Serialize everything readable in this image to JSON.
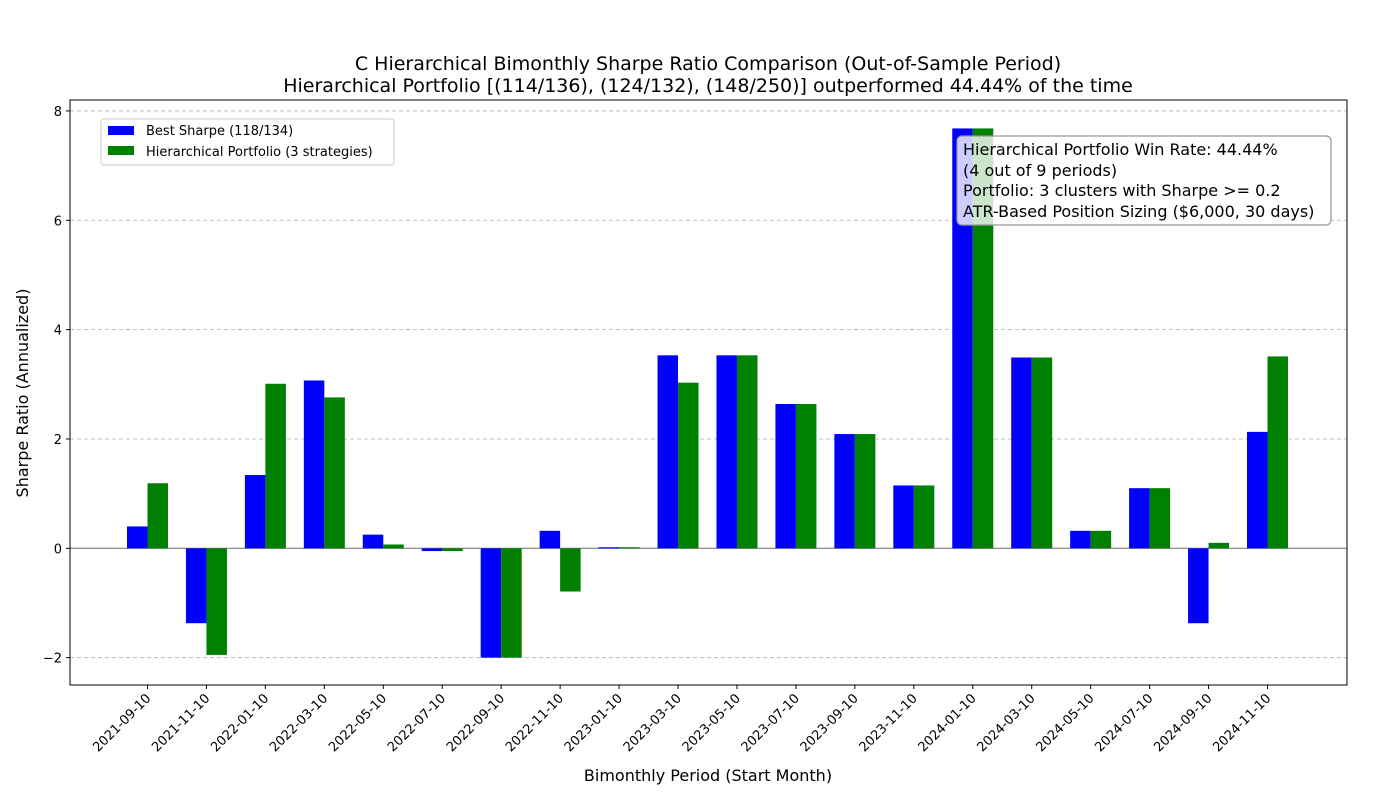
{
  "chart_data": {
    "type": "bar",
    "title": "C Hierarchical Bimonthly Sharpe Ratio Comparison (Out-of-Sample Period)",
    "subtitle": "Hierarchical Portfolio [(114/136), (124/132), (148/250)] outperformed 44.44% of the time",
    "xlabel": "Bimonthly Period (Start Month)",
    "ylabel": "Sharpe Ratio (Annualized)",
    "ylim": [
      -2.5,
      8.2
    ],
    "yticks": [
      -2,
      0,
      2,
      4,
      6,
      8
    ],
    "ytick_labels": [
      "−2",
      "0",
      "2",
      "4",
      "6",
      "8"
    ],
    "grid": "horizontal dashed",
    "legend_position": "top-left",
    "categories": [
      "2021-09-10",
      "2021-11-10",
      "2022-01-10",
      "2022-03-10",
      "2022-05-10",
      "2022-07-10",
      "2022-09-10",
      "2022-11-10",
      "2023-01-10",
      "2023-03-10",
      "2023-05-10",
      "2023-07-10",
      "2023-09-10",
      "2023-11-10",
      "2024-01-10",
      "2024-03-10",
      "2024-05-10",
      "2024-07-10",
      "2024-09-10",
      "2024-11-10"
    ],
    "series": [
      {
        "name": "Best Sharpe (118/134)",
        "color": "#0000ff",
        "values": [
          0.4,
          -1.37,
          1.34,
          3.07,
          0.25,
          -0.05,
          -2.0,
          0.32,
          0.02,
          3.53,
          3.53,
          2.64,
          2.09,
          1.15,
          7.68,
          3.49,
          0.32,
          1.1,
          -1.37,
          2.13
        ]
      },
      {
        "name": "Hierarchical Portfolio (3 strategies)",
        "color": "#008000",
        "values": [
          1.19,
          -1.95,
          3.01,
          2.76,
          0.07,
          -0.05,
          -2.0,
          -0.79,
          0.02,
          3.03,
          3.53,
          2.64,
          2.09,
          1.15,
          7.68,
          3.49,
          0.32,
          1.1,
          0.1,
          3.51
        ]
      }
    ],
    "annotation": {
      "lines": [
        "Hierarchical Portfolio Win Rate: 44.44%",
        "(4 out of 9 periods)",
        "Portfolio: 3 clusters with Sharpe >= 0.2",
        "ATR-Based Position Sizing ($6,000, 30 days)"
      ],
      "position": "top-right"
    }
  }
}
